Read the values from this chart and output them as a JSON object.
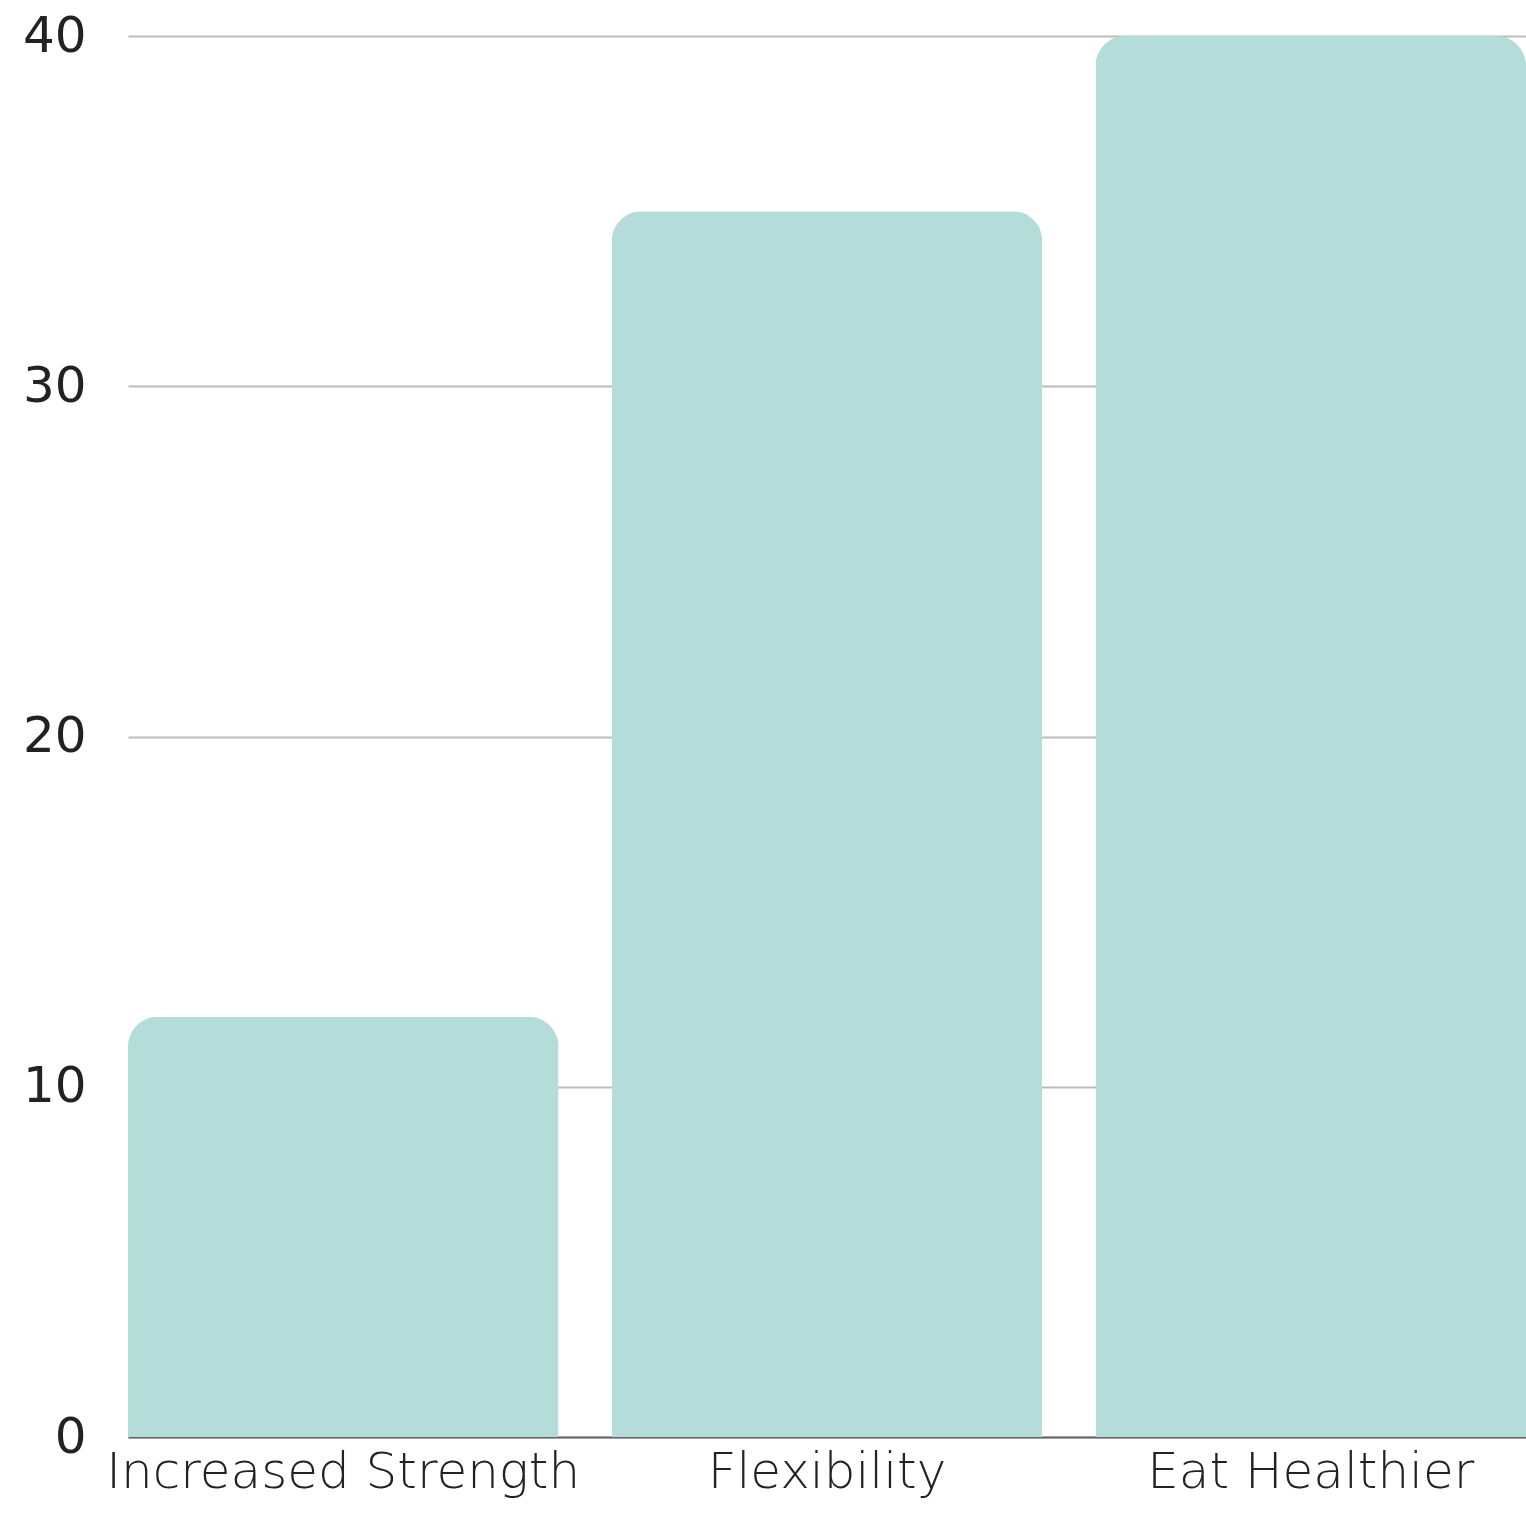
{
  "chart_data": {
    "type": "bar",
    "categories": [
      "Increased Strength",
      "Flexibility",
      "Eat Healthier"
    ],
    "values": [
      12,
      35,
      40
    ],
    "color": "#b4dcd8",
    "ylim": [
      0,
      40
    ],
    "yticks": [
      0,
      10,
      20,
      30,
      40
    ],
    "grid": "y"
  }
}
